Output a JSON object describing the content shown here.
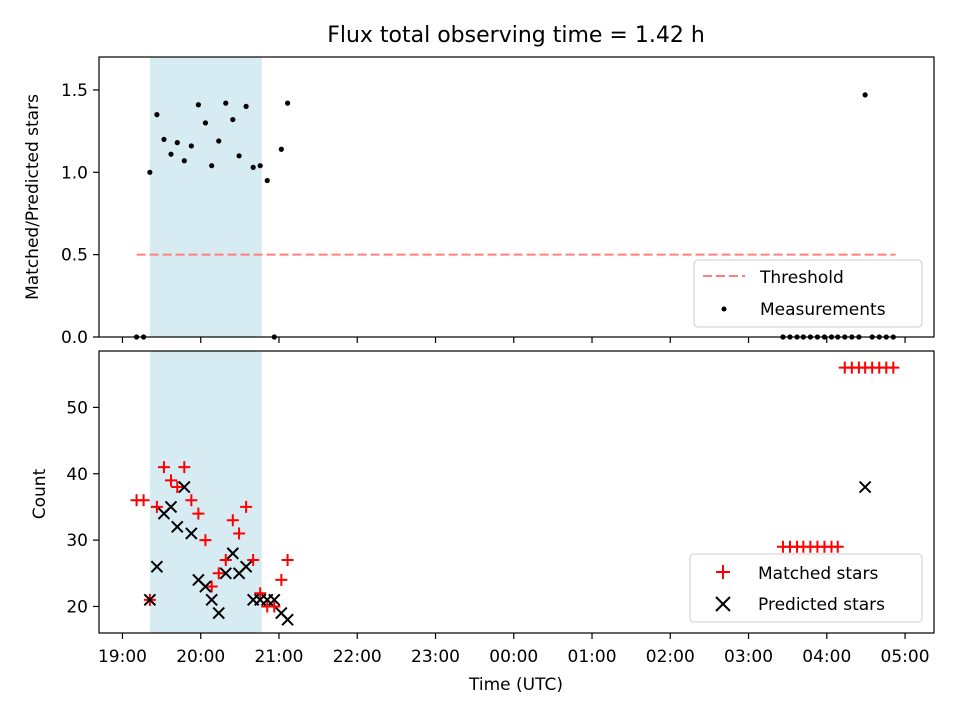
{
  "title": "Flux total observing time = 1.42 h",
  "colors": {
    "measurements": "#000000",
    "threshold": "#ff7f7f",
    "matched": "#ff0000",
    "predicted": "#000000",
    "shade": "#add8e6"
  },
  "chart_data": [
    {
      "type": "scatter",
      "ylabel": "Matched/Predicted stars",
      "ylim": [
        0,
        1.7
      ],
      "yticks": [
        0.0,
        0.5,
        1.0,
        1.5
      ],
      "ytick_labels": [
        "0.0",
        "0.5",
        "1.0",
        "1.5"
      ],
      "x_axis_unit": "hours after 19:00 UTC",
      "xlim": [
        -0.3,
        10.37
      ],
      "shaded_span": [
        0.35,
        1.78
      ],
      "threshold": {
        "label": "Threshold",
        "y": 0.5,
        "x_range": [
          0.18,
          9.88
        ],
        "style": "dashed"
      },
      "legend": {
        "position": "lower right",
        "entries": [
          "Threshold",
          "Measurements"
        ]
      },
      "series": [
        {
          "name": "Measurements",
          "x": [
            0.18,
            0.27,
            0.35,
            0.44,
            0.53,
            0.62,
            0.7,
            0.79,
            0.88,
            0.97,
            1.06,
            1.14,
            1.23,
            1.32,
            1.41,
            1.49,
            1.58,
            1.67,
            1.76,
            1.85,
            1.94,
            2.03,
            2.11,
            8.44,
            8.53,
            8.62,
            8.7,
            8.79,
            8.88,
            8.97,
            9.06,
            9.14,
            9.23,
            9.32,
            9.41,
            9.49,
            9.58,
            9.67,
            9.76,
            9.85
          ],
          "y": [
            0.0,
            0.0,
            1.0,
            1.35,
            1.2,
            1.11,
            1.18,
            1.07,
            1.16,
            1.41,
            1.3,
            1.04,
            1.19,
            1.42,
            1.32,
            1.1,
            1.4,
            1.03,
            1.04,
            0.95,
            0.0,
            1.14,
            1.42,
            0.0,
            0.0,
            0.0,
            0.0,
            0.0,
            0.0,
            0.0,
            0.0,
            0.0,
            0.0,
            0.0,
            0.0,
            1.47,
            0.0,
            0.0,
            0.0,
            0.0
          ]
        }
      ]
    },
    {
      "type": "scatter",
      "xlabel": "Time (UTC)",
      "ylabel": "Count",
      "ylim": [
        16,
        58.5
      ],
      "yticks": [
        20,
        30,
        40,
        50
      ],
      "ytick_labels": [
        "20",
        "30",
        "40",
        "50"
      ],
      "xticks": [
        0,
        1,
        2,
        3,
        4,
        5,
        6,
        7,
        8,
        9,
        10
      ],
      "xtick_labels": [
        "19:00",
        "20:00",
        "21:00",
        "22:00",
        "23:00",
        "00:00",
        "01:00",
        "02:00",
        "03:00",
        "04:00",
        "05:00"
      ],
      "xlim": [
        -0.3,
        10.37
      ],
      "shaded_span": [
        0.35,
        1.78
      ],
      "legend": {
        "position": "lower right",
        "entries": [
          "Matched stars",
          "Predicted stars"
        ]
      },
      "series": [
        {
          "name": "Matched stars",
          "marker": "+",
          "x": [
            0.18,
            0.27,
            0.35,
            0.44,
            0.53,
            0.62,
            0.7,
            0.79,
            0.88,
            0.97,
            1.06,
            1.14,
            1.23,
            1.32,
            1.41,
            1.49,
            1.58,
            1.67,
            1.76,
            1.85,
            1.94,
            2.03,
            2.11,
            8.44,
            8.53,
            8.62,
            8.7,
            8.79,
            8.88,
            8.97,
            9.06,
            9.14,
            9.23,
            9.32,
            9.41,
            9.49,
            9.58,
            9.67,
            9.76,
            9.85
          ],
          "y": [
            36,
            36,
            21,
            35,
            41,
            39,
            38,
            41,
            36,
            34,
            30,
            23,
            25,
            27,
            33,
            31,
            35,
            27,
            22,
            20,
            20,
            24,
            27,
            29,
            29,
            29,
            29,
            29,
            29,
            29,
            29,
            29,
            56,
            56,
            56,
            56,
            56,
            56,
            56,
            56
          ]
        },
        {
          "name": "Predicted stars",
          "marker": "x",
          "x": [
            0.35,
            0.44,
            0.53,
            0.62,
            0.7,
            0.79,
            0.88,
            0.97,
            1.06,
            1.14,
            1.23,
            1.32,
            1.41,
            1.49,
            1.58,
            1.67,
            1.76,
            1.85,
            1.94,
            2.03,
            2.11,
            9.49
          ],
          "y": [
            21,
            26,
            34,
            35,
            32,
            38,
            31,
            24,
            23,
            21,
            19,
            25,
            28,
            25,
            26,
            21,
            21,
            21,
            21,
            19,
            18,
            38
          ]
        }
      ]
    }
  ]
}
